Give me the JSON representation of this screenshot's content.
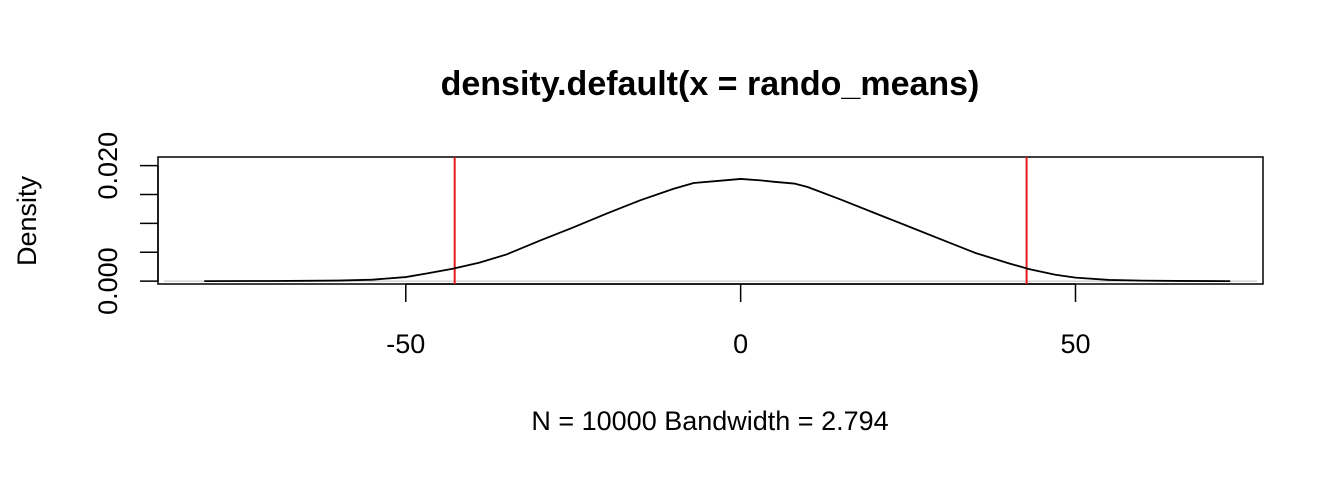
{
  "chart_data": {
    "type": "line",
    "title": "density.default(x = rando_means)",
    "xlabel": "N = 10000   Bandwidth = 2.794",
    "ylabel": "Density",
    "xlim": [
      -87,
      78
    ],
    "ylim": [
      -0.0005,
      0.0215
    ],
    "grid": false,
    "legend": "none",
    "x_ticks": [
      {
        "value": -50,
        "label": "-50"
      },
      {
        "value": 0,
        "label": "0"
      },
      {
        "value": 50,
        "label": "50"
      }
    ],
    "y_ticks": [
      {
        "value": 0.0,
        "label": "0.000"
      },
      {
        "value": 0.005,
        "label": ""
      },
      {
        "value": 0.01,
        "label": ""
      },
      {
        "value": 0.015,
        "label": ""
      },
      {
        "value": 0.02,
        "label": "0.020"
      }
    ],
    "series": [
      {
        "color": "#000000",
        "x": [
          -80,
          -70,
          -65,
          -60,
          -55,
          -50,
          -47,
          -43,
          -39,
          -35,
          -30,
          -25,
          -20,
          -15,
          -10,
          -7,
          -3,
          0,
          3,
          5,
          8,
          10,
          15,
          20,
          25,
          30,
          35,
          40,
          43,
          47,
          50,
          55,
          60,
          65,
          70,
          73
        ],
        "y": [
          0.0,
          2e-05,
          5e-05,
          0.0001,
          0.00025,
          0.0007,
          0.0013,
          0.00215,
          0.0032,
          0.0046,
          0.007,
          0.0093,
          0.0117,
          0.014,
          0.016,
          0.017,
          0.0174,
          0.0177,
          0.01745,
          0.0172,
          0.0169,
          0.0163,
          0.0141,
          0.0118,
          0.0095,
          0.0072,
          0.0049,
          0.0031,
          0.0021,
          0.0011,
          0.0006,
          0.0002,
          8e-05,
          3e-05,
          1e-05,
          0.0
        ]
      }
    ],
    "vlines": [
      {
        "x": -42.7,
        "color": "#e41a1c"
      },
      {
        "x": 42.7,
        "color": "#e41a1c"
      }
    ],
    "hlines": [
      {
        "y": 0,
        "color": "#bebebe"
      }
    ]
  }
}
